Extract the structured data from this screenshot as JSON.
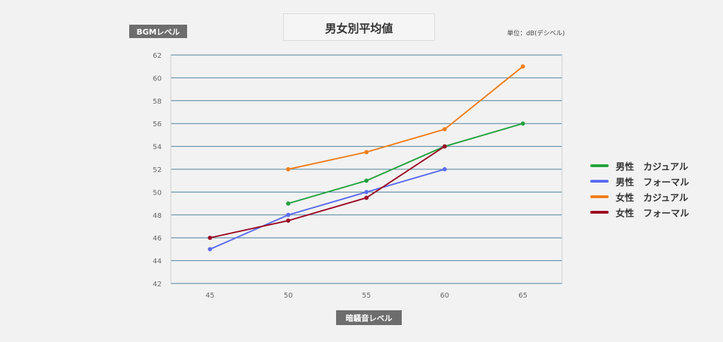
{
  "chart_data": {
    "type": "line",
    "title": "男女別平均値",
    "xlabel": "暗騒音レベル",
    "ylabel": "BGMレベル",
    "unit_note": "単位：dB(デシベル)",
    "x_ticks": [
      45,
      50,
      55,
      60,
      65
    ],
    "y_ticks": [
      42,
      44,
      46,
      48,
      50,
      52,
      54,
      56,
      58,
      60,
      62
    ],
    "xlim": [
      42.5,
      67.5
    ],
    "ylim": [
      42,
      62
    ],
    "grid": "horizontal",
    "legend_position": "right",
    "series": [
      {
        "name": "男性　カジュアル",
        "color": "#22a23c",
        "points": [
          [
            50,
            49
          ],
          [
            55,
            51
          ],
          [
            60,
            54
          ],
          [
            65,
            56
          ]
        ]
      },
      {
        "name": "男性　フォーマル",
        "color": "#5a6cf0",
        "points": [
          [
            45,
            45
          ],
          [
            50,
            48
          ],
          [
            55,
            50
          ],
          [
            60,
            52
          ]
        ]
      },
      {
        "name": "女性　カジュアル",
        "color": "#f07d19",
        "points": [
          [
            50,
            52
          ],
          [
            55,
            53.5
          ],
          [
            60,
            55.5
          ],
          [
            65,
            61
          ]
        ]
      },
      {
        "name": "女性　フォーマル",
        "color": "#9b0a24",
        "points": [
          [
            45,
            46
          ],
          [
            50,
            47.5
          ],
          [
            55,
            49.5
          ],
          [
            60,
            54
          ]
        ]
      }
    ]
  }
}
